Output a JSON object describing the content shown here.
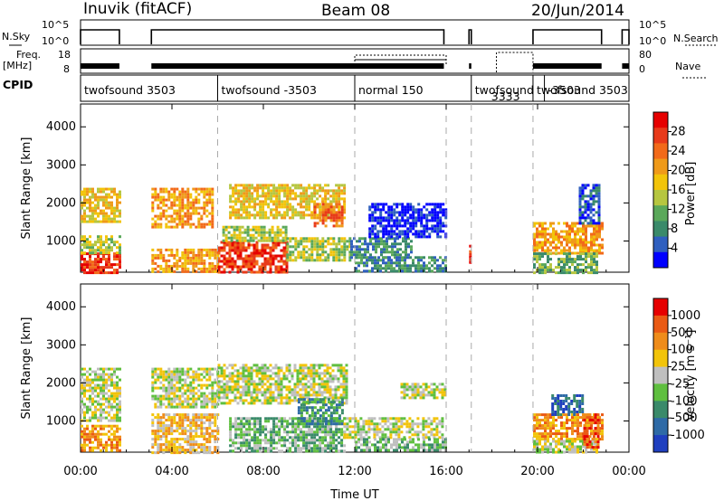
{
  "header": {
    "station": "Inuvik (fitACF)",
    "beam": "Beam 08",
    "date": "20/Jun/2014"
  },
  "strip_labels": {
    "nsky": "N.Sky",
    "nsearch": "N.Search",
    "freq": "Freq.",
    "freq_unit": "[MHz]",
    "nave": "Nave",
    "cpid": "CPID",
    "nsky_ticks": [
      "10^5",
      "10^0"
    ],
    "freq_ticks": [
      "18",
      "8"
    ],
    "nave_ticks": [
      "80",
      "0"
    ]
  },
  "colors": {
    "power": [
      "#0000ff",
      "#2f5fbf",
      "#3a8a6a",
      "#5aa85a",
      "#b6c640",
      "#f2c40a",
      "#ef9a1a",
      "#f26a1a",
      "#e83a1a",
      "#e60000"
    ],
    "velocity": [
      "#1f3fbf",
      "#2e6aa6",
      "#3a8a6a",
      "#5fbf3f",
      "#bfbfbf",
      "#f2c40a",
      "#ef8c1a",
      "#ea5a14",
      "#e60000"
    ],
    "dash": "#aaaaaa"
  },
  "chart_data": {
    "type": "heatmap",
    "x_range_hours": [
      0,
      24
    ],
    "x_ticks": [
      "00:00",
      "04:00",
      "08:00",
      "12:00",
      "16:00",
      "20:00",
      "00:00"
    ],
    "x_tick_hours": [
      0,
      4,
      8,
      12,
      16,
      20,
      24
    ],
    "xlabel": "Time UT",
    "y_range_km": [
      180,
      4600
    ],
    "y_ticks": [
      1000,
      2000,
      3000,
      4000
    ],
    "ylabel": "Slant Range [km]",
    "cpid_segments": [
      {
        "label": "twofsound 3503",
        "start": 0.0,
        "end": 6.0
      },
      {
        "label": "twofsound -3503",
        "start": 6.0,
        "end": 12.0
      },
      {
        "label": "normal 150",
        "start": 12.0,
        "end": 17.1
      },
      {
        "label": "twofsound",
        "sub": "3333",
        "start": 17.1,
        "end": 19.8
      },
      {
        "label": "twofsound 3503",
        "start": 19.8,
        "end": 20.3
      },
      {
        "label": "-3503",
        "start": 20.3,
        "end": 24.0
      }
    ],
    "boundaries_hours": [
      6.0,
      12.0,
      16.0,
      17.1,
      19.8
    ],
    "power_panel": {
      "colorbar_label": "Power [dB]",
      "colorbar_ticks": [
        "28",
        "24",
        "20",
        "16",
        "12",
        "8",
        "4"
      ],
      "regions": [
        {
          "t0": 0.0,
          "t1": 1.7,
          "r0": 200,
          "r1": 700,
          "level": 8
        },
        {
          "t0": 0.0,
          "t1": 1.7,
          "r0": 700,
          "r1": 1150,
          "level": 4
        },
        {
          "t0": 0.0,
          "t1": 1.7,
          "r0": 1500,
          "r1": 2400,
          "level": 5
        },
        {
          "t0": 3.1,
          "t1": 6.0,
          "r0": 200,
          "r1": 800,
          "level": 6
        },
        {
          "t0": 3.1,
          "t1": 5.8,
          "r0": 1400,
          "r1": 2400,
          "level": 6
        },
        {
          "t0": 6.0,
          "t1": 9.0,
          "r0": 200,
          "r1": 1000,
          "level": 8
        },
        {
          "t0": 6.2,
          "t1": 9.0,
          "r0": 1000,
          "r1": 1400,
          "level": 4
        },
        {
          "t0": 6.5,
          "t1": 11.6,
          "r0": 1600,
          "r1": 2500,
          "level": 5
        },
        {
          "t0": 9.0,
          "t1": 11.8,
          "r0": 500,
          "r1": 1100,
          "level": 4
        },
        {
          "t0": 10.2,
          "t1": 11.5,
          "r0": 1400,
          "r1": 2000,
          "level": 7
        },
        {
          "t0": 11.8,
          "t1": 14.5,
          "r0": 600,
          "r1": 1100,
          "level": 2
        },
        {
          "t0": 12.0,
          "t1": 16.0,
          "r0": 200,
          "r1": 600,
          "level": 2
        },
        {
          "t0": 12.6,
          "t1": 16.0,
          "r0": 1100,
          "r1": 2000,
          "level": 0
        },
        {
          "t0": 17.0,
          "t1": 17.1,
          "r0": 200,
          "r1": 900,
          "level": 8
        },
        {
          "t0": 19.8,
          "t1": 22.8,
          "r0": 700,
          "r1": 1500,
          "level": 6
        },
        {
          "t0": 19.8,
          "t1": 22.6,
          "r0": 200,
          "r1": 700,
          "level": 3
        },
        {
          "t0": 21.8,
          "t1": 22.7,
          "r0": 1500,
          "r1": 2500,
          "level": 1
        }
      ]
    },
    "velocity_panel": {
      "colorbar_label": "Velocity [m s⁻¹]",
      "colorbar_ticks": [
        "1000",
        "500",
        "100",
        "25",
        "-25",
        "-100",
        "-500",
        "-1000"
      ],
      "regions": [
        {
          "t0": 0.0,
          "t1": 1.7,
          "r0": 200,
          "r1": 900,
          "level": 6
        },
        {
          "t0": 0.0,
          "t1": 1.7,
          "r0": 1000,
          "r1": 2400,
          "level": 4
        },
        {
          "t0": 3.1,
          "t1": 6.0,
          "r0": 200,
          "r1": 1200,
          "level": 5
        },
        {
          "t0": 3.1,
          "t1": 6.0,
          "r0": 1400,
          "r1": 2400,
          "level": 4
        },
        {
          "t0": 6.0,
          "t1": 11.6,
          "r0": 1500,
          "r1": 2500,
          "level": 4
        },
        {
          "t0": 6.5,
          "t1": 11.5,
          "r0": 200,
          "r1": 1100,
          "level": 3
        },
        {
          "t0": 9.5,
          "t1": 11.5,
          "r0": 900,
          "r1": 1600,
          "level": 2
        },
        {
          "t0": 11.5,
          "t1": 15.8,
          "r0": 550,
          "r1": 1100,
          "level": 4
        },
        {
          "t0": 12.0,
          "t1": 16.0,
          "r0": 200,
          "r1": 550,
          "level": 3
        },
        {
          "t0": 14.0,
          "t1": 16.0,
          "r0": 1600,
          "r1": 2000,
          "level": 4
        },
        {
          "t0": 19.8,
          "t1": 22.8,
          "r0": 500,
          "r1": 1200,
          "level": 6
        },
        {
          "t0": 20.6,
          "t1": 22.0,
          "r0": 1200,
          "r1": 1700,
          "level": 1
        },
        {
          "t0": 19.8,
          "t1": 22.6,
          "r0": 200,
          "r1": 500,
          "level": 4
        },
        {
          "t0": 22.0,
          "t1": 22.7,
          "r0": 300,
          "r1": 1200,
          "level": 7
        }
      ]
    }
  }
}
